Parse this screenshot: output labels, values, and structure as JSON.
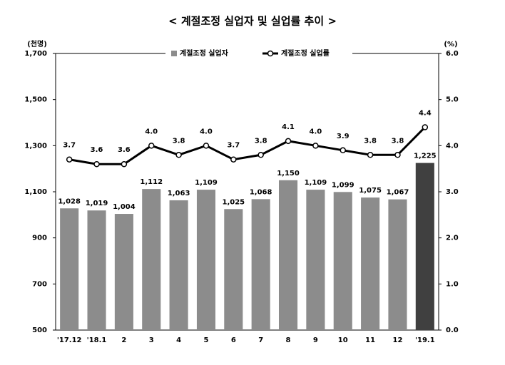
{
  "chart_data": {
    "type": "bar_line",
    "title": "< 계절조정 실업자 및 실업률 추이 >",
    "y_unit": "(천명)",
    "y2_unit": "(%)",
    "categories": [
      "'17.12",
      "'18.1",
      "2",
      "3",
      "4",
      "5",
      "6",
      "7",
      "8",
      "9",
      "10",
      "11",
      "12",
      "'19.1"
    ],
    "series": [
      {
        "name": "계절조정 실업자",
        "type": "bar",
        "color": "#8c8c8c",
        "colors": [
          "#8c8c8c",
          "#8c8c8c",
          "#8c8c8c",
          "#8c8c8c",
          "#8c8c8c",
          "#8c8c8c",
          "#8c8c8c",
          "#8c8c8c",
          "#8c8c8c",
          "#8c8c8c",
          "#8c8c8c",
          "#8c8c8c",
          "#8c8c8c",
          "#404040"
        ],
        "values": [
          1028,
          1019,
          1004,
          1112,
          1063,
          1109,
          1025,
          1068,
          1150,
          1109,
          1099,
          1075,
          1067,
          1225
        ],
        "value_labels": [
          "1,028",
          "1,019",
          "1,004",
          "1,112",
          "1,063",
          "1,109",
          "1,025",
          "1,068",
          "1,150",
          "1,109",
          "1,099",
          "1,075",
          "1,067",
          "1,225"
        ]
      },
      {
        "name": "계절조정 실업률",
        "type": "line",
        "axis": "y2",
        "color": "#000000",
        "values": [
          3.7,
          3.6,
          3.6,
          4.0,
          3.8,
          4.0,
          3.7,
          3.8,
          4.1,
          4.0,
          3.9,
          3.8,
          3.8,
          4.4
        ],
        "value_labels": [
          "3.7",
          "3.6",
          "3.6",
          "4.0",
          "3.8",
          "4.0",
          "3.7",
          "3.8",
          "4.1",
          "4.0",
          "3.9",
          "3.8",
          "3.8",
          "4.4"
        ]
      }
    ],
    "ylim": [
      500,
      1700
    ],
    "yticks": [
      500,
      700,
      900,
      {
        "value": 1100,
        "label": "1,100"
      },
      {
        "value": 1300,
        "label": "1,300"
      },
      {
        "value": 1500,
        "label": "1,500"
      },
      {
        "value": 1700,
        "label": "1,700"
      }
    ],
    "y2lim": [
      0,
      6
    ],
    "y2ticks": [
      {
        "value": 0,
        "label": "0.0"
      },
      {
        "value": 1,
        "label": "1.0"
      },
      {
        "value": 2,
        "label": "2.0"
      },
      {
        "value": 3,
        "label": "3.0"
      },
      {
        "value": 4,
        "label": "4.0"
      },
      {
        "value": 5,
        "label": "5.0"
      },
      {
        "value": 6,
        "label": "6.0"
      }
    ],
    "grid": false,
    "legend": "top"
  }
}
